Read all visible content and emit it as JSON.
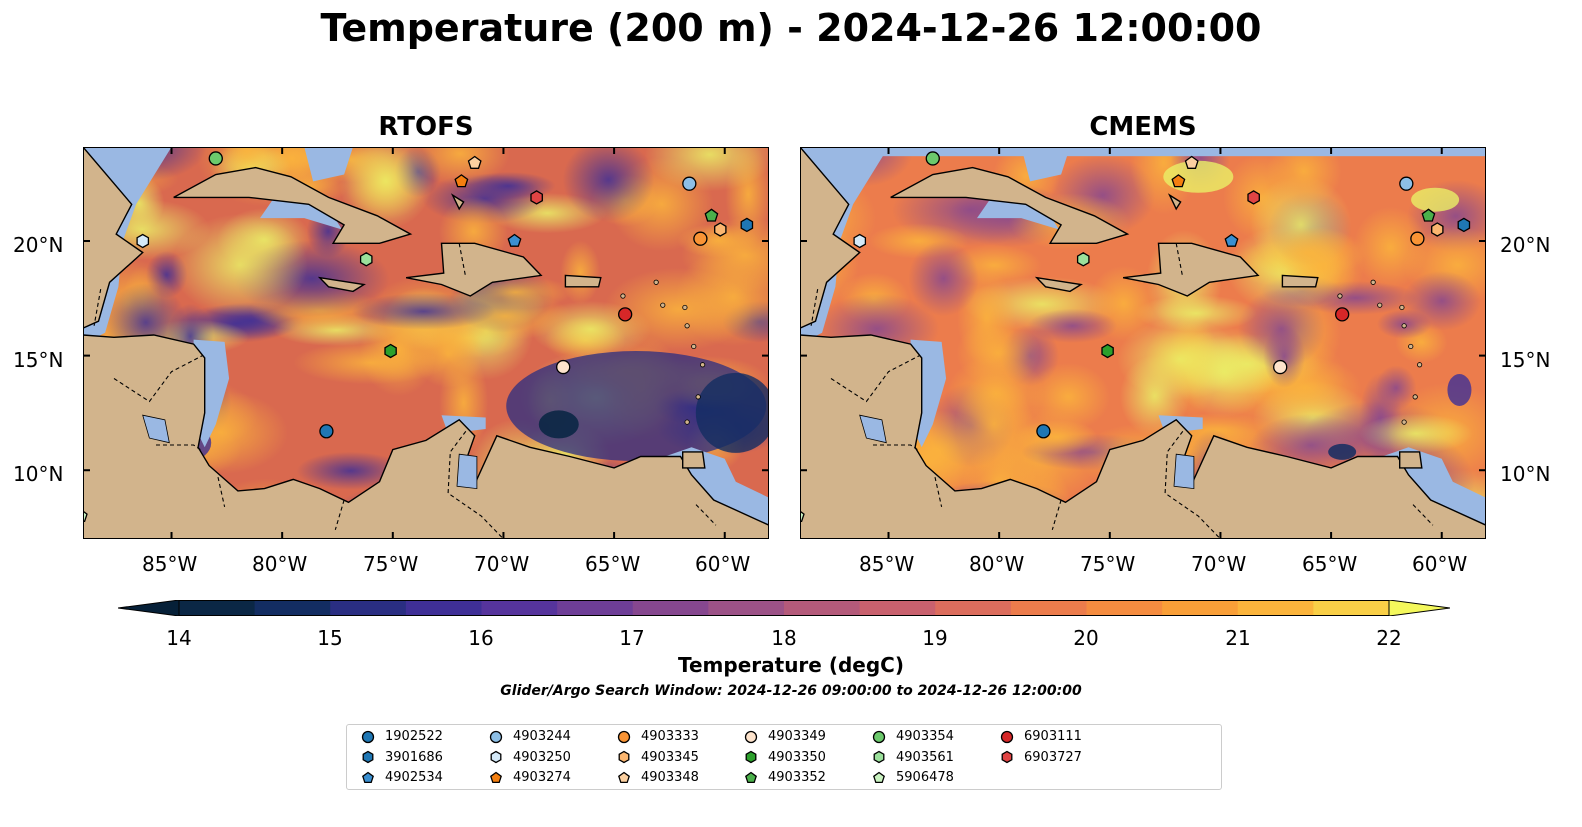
{
  "title": "Temperature (200 m) - 2024-12-26 12:00:00",
  "panels": [
    {
      "name": "RTOFS"
    },
    {
      "name": "CMEMS"
    }
  ],
  "lon_ticks": [
    "85°W",
    "80°W",
    "75°W",
    "70°W",
    "65°W",
    "60°W"
  ],
  "lat_ticks": [
    "20°N",
    "15°N",
    "10°N"
  ],
  "colorbar": {
    "label": "Temperature (degC)",
    "ticks": [
      "14",
      "15",
      "16",
      "17",
      "18",
      "19",
      "20",
      "21",
      "22"
    ],
    "colors": [
      "#0b2745",
      "#132d62",
      "#2a2e82",
      "#3f2f96",
      "#56349c",
      "#6e3e97",
      "#86478f",
      "#9c5287",
      "#b45a7a",
      "#c9616e",
      "#dc6d5d",
      "#ec7c4c",
      "#f58c40",
      "#f99f38",
      "#fbb43c",
      "#f9cf47",
      "#eaf067"
    ],
    "under_color": "#062038",
    "over_color": "#f4f85c"
  },
  "search_window": "Glider/Argo Search Window: 2024-12-26 09:00:00 to 2024-12-26 12:00:00",
  "legend": [
    {
      "id": "1902522",
      "marker": "circle",
      "color": "#1f77b4"
    },
    {
      "id": "3901686",
      "marker": "hexagon",
      "color": "#1f77b4"
    },
    {
      "id": "4902534",
      "marker": "pentagon",
      "color": "#3a8fd0"
    },
    {
      "id": "4903244",
      "marker": "circle",
      "color": "#8dbfe6"
    },
    {
      "id": "4903250",
      "marker": "hexagon",
      "color": "#d4e9f8"
    },
    {
      "id": "4903274",
      "marker": "pentagon",
      "color": "#f47f10"
    },
    {
      "id": "4903333",
      "marker": "circle",
      "color": "#f99435"
    },
    {
      "id": "4903345",
      "marker": "hexagon",
      "color": "#fbb670"
    },
    {
      "id": "4903348",
      "marker": "pentagon",
      "color": "#fcd0a0"
    },
    {
      "id": "4903349",
      "marker": "circle",
      "color": "#fde3cc"
    },
    {
      "id": "4903350",
      "marker": "hexagon",
      "color": "#2ca02c"
    },
    {
      "id": "4903352",
      "marker": "pentagon",
      "color": "#4bb04b"
    },
    {
      "id": "4903354",
      "marker": "circle",
      "color": "#6cc96c"
    },
    {
      "id": "4903561",
      "marker": "hexagon",
      "color": "#9be09b"
    },
    {
      "id": "5906478",
      "marker": "pentagon",
      "color": "#c9f2c0"
    },
    {
      "id": "6903111",
      "marker": "circle",
      "color": "#d62728"
    },
    {
      "id": "6903727",
      "marker": "hexagon",
      "color": "#e04444"
    }
  ],
  "floats": [
    {
      "id": "1902522",
      "lon": -78,
      "lat": 11.7
    },
    {
      "id": "3901686",
      "lon": -59,
      "lat": 20.7
    },
    {
      "id": "4902534",
      "lon": -69.5,
      "lat": 20.0
    },
    {
      "id": "4903244",
      "lon": -61.6,
      "lat": 22.5
    },
    {
      "id": "4903250",
      "lon": -86.3,
      "lat": 20.0
    },
    {
      "id": "4903274",
      "lon": -71.9,
      "lat": 22.6
    },
    {
      "id": "4903333",
      "lon": -61.1,
      "lat": 20.1
    },
    {
      "id": "4903345",
      "lon": -60.2,
      "lat": 20.5
    },
    {
      "id": "4903348",
      "lon": -71.3,
      "lat": 23.4
    },
    {
      "id": "4903349",
      "lon": -67.3,
      "lat": 14.5
    },
    {
      "id": "4903350",
      "lon": -75.1,
      "lat": 15.2
    },
    {
      "id": "4903352",
      "lon": -60.6,
      "lat": 21.1
    },
    {
      "id": "4903354",
      "lon": -83,
      "lat": 23.6
    },
    {
      "id": "4903561",
      "lon": -76.2,
      "lat": 19.2
    },
    {
      "id": "5906478",
      "lon": -89.1,
      "lat": 8.0
    },
    {
      "id": "6903111",
      "lon": -64.5,
      "lat": 16.8
    },
    {
      "id": "6903727",
      "lon": -68.5,
      "lat": 21.9
    }
  ]
}
